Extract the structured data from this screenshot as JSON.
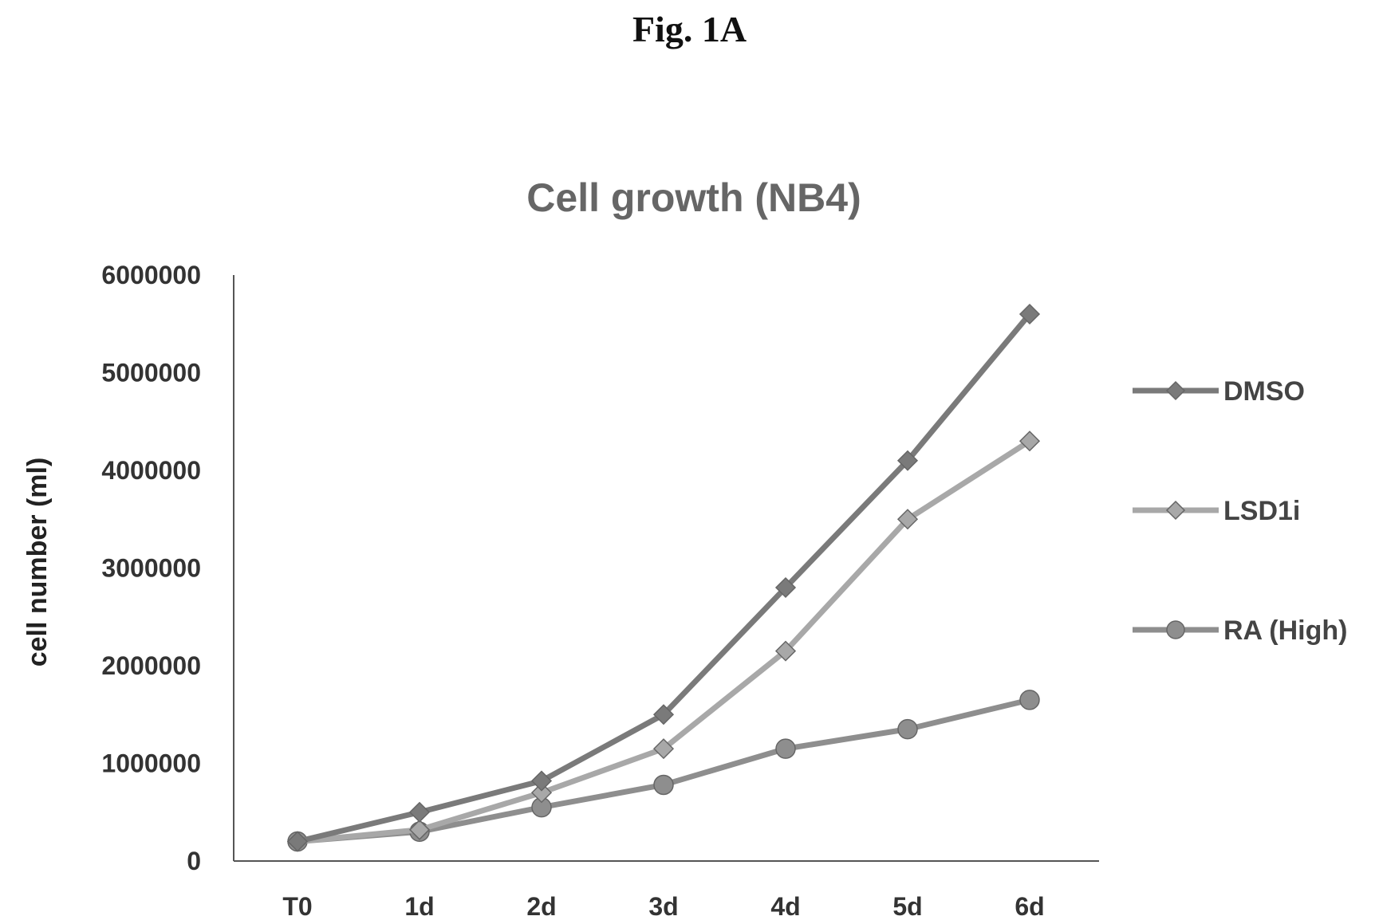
{
  "figure_label": "Fig. 1A",
  "chart_data": {
    "type": "line",
    "title": "Cell growth (NB4)",
    "xlabel": "",
    "ylabel": "cell number (ml)",
    "categories": [
      "T0",
      "1d",
      "2d",
      "3d",
      "4d",
      "5d",
      "6d"
    ],
    "ylim": [
      0,
      6000000
    ],
    "yticks": [
      "0",
      "1000000",
      "2000000",
      "3000000",
      "4000000",
      "5000000",
      "6000000"
    ],
    "grid": false,
    "legend_position": "right",
    "series": [
      {
        "name": "DMSO",
        "color": "#7a7a7a",
        "marker": "diamond",
        "values": [
          200000,
          500000,
          820000,
          1500000,
          2800000,
          4100000,
          5600000
        ]
      },
      {
        "name": "LSD1i",
        "color": "#a8a8a8",
        "marker": "diamond",
        "values": [
          200000,
          320000,
          700000,
          1150000,
          2150000,
          3500000,
          4300000
        ]
      },
      {
        "name": "RA (High)",
        "color": "#8e8e8e",
        "marker": "circle",
        "values": [
          200000,
          300000,
          550000,
          780000,
          1150000,
          1350000,
          1650000
        ]
      }
    ]
  }
}
